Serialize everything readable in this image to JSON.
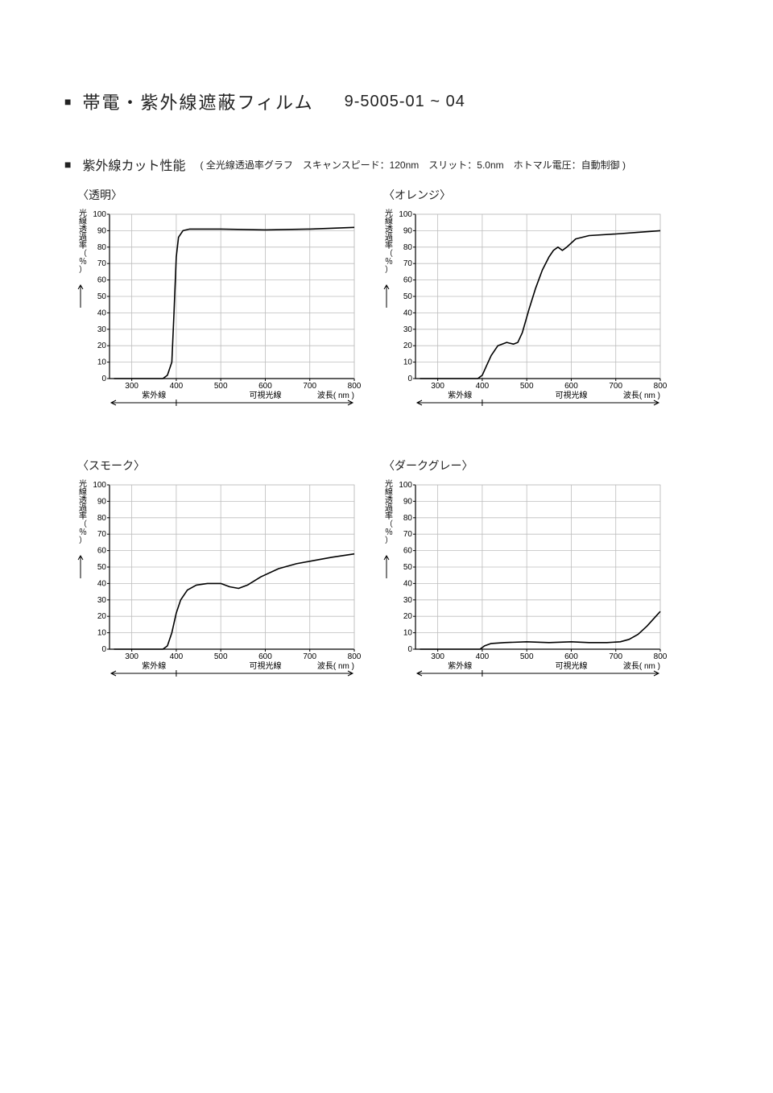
{
  "header": {
    "bullet": "■",
    "title": "帯電・紫外線遮蔽フィルム",
    "code": "9-5005-01 ~ 04"
  },
  "subtitle": {
    "bullet": "■",
    "label": "紫外線カット性能",
    "paren": "( 全光線透過率グラフ　スキャンスピード：120nm　スリット：5.0nm　ホトマル電圧：自動制御 )"
  },
  "chart_common": {
    "xlim": [
      250,
      800
    ],
    "ylim": [
      0,
      100
    ],
    "xticks": [
      300,
      400,
      500,
      600,
      700,
      800
    ],
    "yticks": [
      0,
      10,
      20,
      30,
      40,
      50,
      60,
      70,
      80,
      90,
      100
    ],
    "xlabel_right": "波長( nm )",
    "ylabel": "光線透過率（％）",
    "uv_label": "紫外線",
    "visible_label": "可視光線",
    "uv_boundary_x": 400,
    "grid_color": "#bdbdbd",
    "axis_color": "#000000",
    "line_color": "#000000",
    "line_width": 1.6,
    "background": "#ffffff",
    "tick_fontsize": 10,
    "label_fontsize": 10,
    "ylabel_fontsize": 10
  },
  "charts": [
    {
      "title": "〈透明〉",
      "series": [
        {
          "x": 260,
          "y": 0
        },
        {
          "x": 370,
          "y": 0
        },
        {
          "x": 380,
          "y": 2
        },
        {
          "x": 390,
          "y": 10
        },
        {
          "x": 395,
          "y": 40
        },
        {
          "x": 400,
          "y": 74
        },
        {
          "x": 405,
          "y": 86
        },
        {
          "x": 415,
          "y": 90
        },
        {
          "x": 430,
          "y": 91
        },
        {
          "x": 500,
          "y": 91
        },
        {
          "x": 600,
          "y": 90.5
        },
        {
          "x": 700,
          "y": 91
        },
        {
          "x": 800,
          "y": 92
        }
      ]
    },
    {
      "title": "〈オレンジ〉",
      "series": [
        {
          "x": 260,
          "y": 0
        },
        {
          "x": 390,
          "y": 0
        },
        {
          "x": 400,
          "y": 2
        },
        {
          "x": 410,
          "y": 8
        },
        {
          "x": 420,
          "y": 14
        },
        {
          "x": 435,
          "y": 20
        },
        {
          "x": 455,
          "y": 22
        },
        {
          "x": 470,
          "y": 21
        },
        {
          "x": 480,
          "y": 22
        },
        {
          "x": 490,
          "y": 28
        },
        {
          "x": 505,
          "y": 42
        },
        {
          "x": 520,
          "y": 55
        },
        {
          "x": 535,
          "y": 66
        },
        {
          "x": 550,
          "y": 74
        },
        {
          "x": 560,
          "y": 78
        },
        {
          "x": 570,
          "y": 80
        },
        {
          "x": 580,
          "y": 78
        },
        {
          "x": 590,
          "y": 80
        },
        {
          "x": 610,
          "y": 85
        },
        {
          "x": 640,
          "y": 87
        },
        {
          "x": 700,
          "y": 88
        },
        {
          "x": 750,
          "y": 89
        },
        {
          "x": 800,
          "y": 90
        }
      ]
    },
    {
      "title": "〈スモーク〉",
      "series": [
        {
          "x": 260,
          "y": 0
        },
        {
          "x": 370,
          "y": 0
        },
        {
          "x": 380,
          "y": 2
        },
        {
          "x": 390,
          "y": 10
        },
        {
          "x": 400,
          "y": 22
        },
        {
          "x": 410,
          "y": 30
        },
        {
          "x": 425,
          "y": 36
        },
        {
          "x": 445,
          "y": 39
        },
        {
          "x": 470,
          "y": 40
        },
        {
          "x": 500,
          "y": 40
        },
        {
          "x": 520,
          "y": 38
        },
        {
          "x": 540,
          "y": 37
        },
        {
          "x": 560,
          "y": 39
        },
        {
          "x": 590,
          "y": 44
        },
        {
          "x": 630,
          "y": 49
        },
        {
          "x": 670,
          "y": 52
        },
        {
          "x": 710,
          "y": 54
        },
        {
          "x": 750,
          "y": 56
        },
        {
          "x": 800,
          "y": 58
        }
      ]
    },
    {
      "title": "〈ダークグレー〉",
      "series": [
        {
          "x": 260,
          "y": 0
        },
        {
          "x": 395,
          "y": 0
        },
        {
          "x": 405,
          "y": 2
        },
        {
          "x": 420,
          "y": 3.5
        },
        {
          "x": 450,
          "y": 4
        },
        {
          "x": 500,
          "y": 4.5
        },
        {
          "x": 550,
          "y": 4
        },
        {
          "x": 600,
          "y": 4.5
        },
        {
          "x": 640,
          "y": 4
        },
        {
          "x": 680,
          "y": 4
        },
        {
          "x": 710,
          "y": 4.5
        },
        {
          "x": 730,
          "y": 6
        },
        {
          "x": 750,
          "y": 9
        },
        {
          "x": 770,
          "y": 14
        },
        {
          "x": 790,
          "y": 20
        },
        {
          "x": 800,
          "y": 23
        }
      ]
    }
  ]
}
